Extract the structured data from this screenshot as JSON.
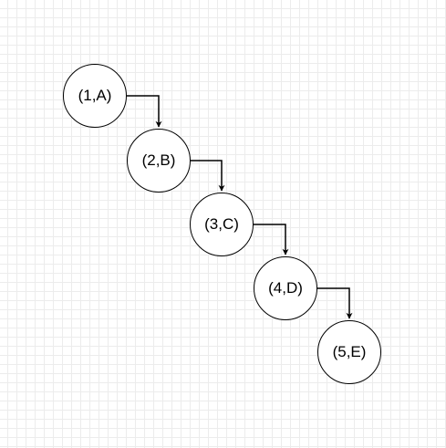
{
  "diagram": {
    "nodes": [
      {
        "id": "n1",
        "label": "(1,A)"
      },
      {
        "id": "n2",
        "label": "(2,B)"
      },
      {
        "id": "n3",
        "label": "(3,C)"
      },
      {
        "id": "n4",
        "label": "(4,D)"
      },
      {
        "id": "n5",
        "label": "(5,E)"
      }
    ],
    "edges": [
      {
        "from": "n1",
        "to": "n2"
      },
      {
        "from": "n2",
        "to": "n3"
      },
      {
        "from": "n3",
        "to": "n4"
      },
      {
        "from": "n4",
        "to": "n5"
      }
    ],
    "grid": true,
    "colors": {
      "stroke": "#000000",
      "node_fill": "#ffffff",
      "grid_line": "#ececec"
    }
  }
}
